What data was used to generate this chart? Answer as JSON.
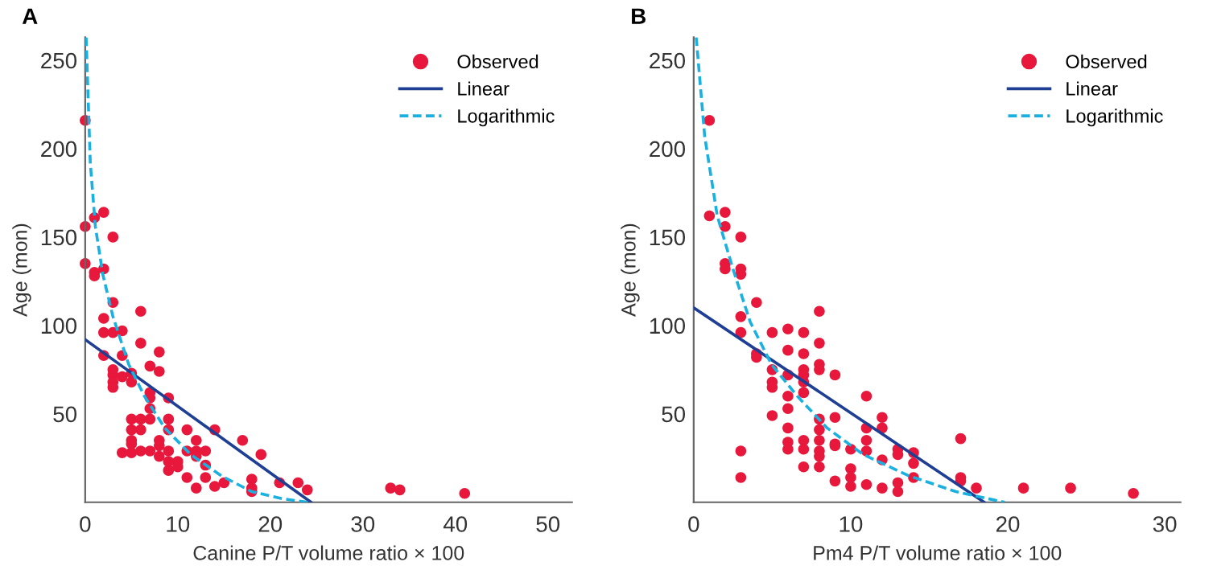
{
  "chart_data": [
    {
      "type": "scatter",
      "title": "A",
      "xlabel": "Canine P/T volume ratio × 100",
      "ylabel": "Age (mon)",
      "xlim": [
        0,
        52.6
      ],
      "ylim": [
        0,
        263
      ],
      "xticks": [
        0,
        10,
        20,
        30,
        40,
        50
      ],
      "yticks": [
        50,
        100,
        150,
        200,
        250
      ],
      "legend": "top right",
      "grid": false,
      "series": [
        {
          "name": "Observed",
          "marker": "circle",
          "color": "#e8173c",
          "x": [
            0,
            0,
            0,
            1,
            1,
            1,
            2,
            2,
            2,
            2,
            2,
            3,
            3,
            3,
            3,
            3,
            3,
            3,
            4,
            4,
            4,
            4,
            5,
            5,
            5,
            5,
            5,
            5,
            5,
            6,
            6,
            6,
            6,
            6,
            7,
            7,
            7,
            7,
            7,
            7,
            8,
            8,
            8,
            8,
            8,
            9,
            9,
            9,
            9,
            9,
            9,
            10,
            10,
            11,
            11,
            11,
            12,
            12,
            12,
            12,
            13,
            13,
            13,
            14,
            14,
            15,
            17,
            19,
            18,
            18,
            18,
            21,
            23,
            24,
            33,
            34,
            41
          ],
          "values": [
            216,
            156,
            135,
            161,
            130,
            128,
            164,
            132,
            104,
            96,
            83,
            150,
            113,
            96,
            75,
            72,
            68,
            65,
            97,
            83,
            71,
            28,
            73,
            68,
            47,
            41,
            35,
            33,
            28,
            108,
            90,
            47,
            41,
            29,
            77,
            62,
            59,
            53,
            47,
            29,
            85,
            74,
            35,
            32,
            26,
            59,
            47,
            41,
            29,
            23,
            18,
            23,
            20,
            41,
            29,
            14,
            35,
            29,
            26,
            8,
            29,
            21,
            14,
            41,
            9,
            11,
            35,
            27,
            13,
            8,
            6,
            11,
            11,
            7,
            8,
            7,
            5
          ]
        },
        {
          "name": "Linear",
          "type": "line",
          "color": "#1f3f95",
          "line_style": "solid",
          "x": [
            0,
            24.4
          ],
          "values": [
            92,
            0
          ]
        },
        {
          "name": "Logarithmic",
          "type": "line",
          "color": "#1ab0e0",
          "line_style": "dashed",
          "x": [
            0.1,
            0.55,
            1.1,
            1.9,
            3.0,
            4.7,
            6.4,
            8.6,
            11.4,
            14.7,
            18,
            21.3,
            24.1
          ],
          "values": [
            263,
            192,
            156,
            129,
            105,
            78,
            60,
            42,
            27,
            15,
            6,
            2,
            0
          ]
        }
      ]
    },
    {
      "type": "scatter",
      "title": "B",
      "xlabel": "Pm4 P/T volume ratio × 100",
      "ylabel": "Age (mon)",
      "xlim": [
        0,
        31
      ],
      "ylim": [
        0,
        263
      ],
      "xticks": [
        0,
        10,
        20,
        30
      ],
      "yticks": [
        50,
        100,
        150,
        200,
        250
      ],
      "legend": "top right",
      "grid": false,
      "series": [
        {
          "name": "Observed",
          "marker": "circle",
          "color": "#e8173c",
          "x": [
            1,
            1,
            2,
            2,
            2,
            2,
            3,
            3,
            3,
            3,
            3,
            3,
            3,
            4,
            4,
            4,
            5,
            5,
            5,
            5,
            5,
            6,
            6,
            6,
            6,
            6,
            6,
            6,
            6,
            7,
            7,
            7,
            7,
            7,
            7,
            7,
            7,
            7,
            8,
            8,
            8,
            8,
            8,
            8,
            8,
            8,
            8,
            8,
            9,
            9,
            9,
            9,
            9,
            10,
            10,
            10,
            10,
            11,
            11,
            11,
            11,
            11,
            12,
            12,
            12,
            12,
            13,
            13,
            13,
            13,
            14,
            14,
            14,
            17,
            17,
            17,
            18,
            21,
            24,
            28
          ],
          "values": [
            216,
            162,
            164,
            156,
            135,
            132,
            150,
            132,
            129,
            105,
            96,
            29,
            14,
            113,
            84,
            82,
            96,
            75,
            68,
            65,
            49,
            98,
            86,
            72,
            60,
            53,
            42,
            34,
            30,
            96,
            84,
            75,
            72,
            68,
            62,
            35,
            30,
            20,
            108,
            90,
            78,
            75,
            47,
            41,
            35,
            29,
            26,
            20,
            72,
            48,
            33,
            32,
            12,
            30,
            19,
            14,
            9,
            60,
            42,
            35,
            29,
            10,
            48,
            42,
            24,
            8,
            30,
            27,
            11,
            6,
            28,
            22,
            14,
            36,
            14,
            12,
            8,
            8,
            8,
            5
          ]
        },
        {
          "name": "Linear",
          "type": "line",
          "color": "#1f3f95",
          "line_style": "solid",
          "x": [
            0,
            18.5
          ],
          "values": [
            110,
            0
          ]
        },
        {
          "name": "Logarithmic",
          "type": "line",
          "color": "#1ab0e0",
          "line_style": "dashed",
          "x": [
            0.16,
            0.7,
            1.5,
            2.5,
            3.6,
            4.95,
            6.6,
            8.5,
            10.8,
            13.7,
            16.7,
            19.8
          ],
          "values": [
            263,
            207,
            162,
            132,
            102,
            78,
            60,
            42,
            27,
            15,
            6,
            0
          ]
        }
      ]
    }
  ]
}
